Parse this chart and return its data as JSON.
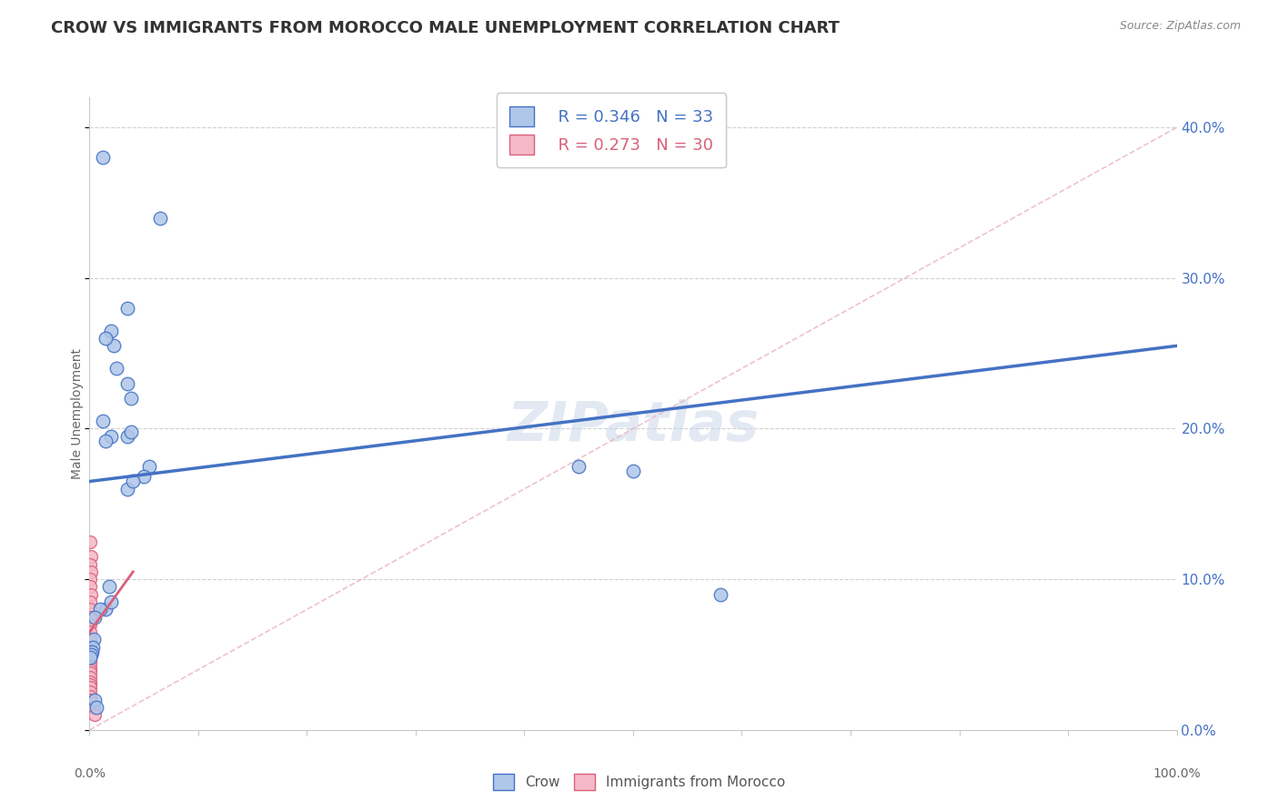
{
  "title": "CROW VS IMMIGRANTS FROM MOROCCO MALE UNEMPLOYMENT CORRELATION CHART",
  "source": "Source: ZipAtlas.com",
  "ylabel": "Male Unemployment",
  "watermark": "ZIPatlas",
  "legend": {
    "crow_r": "R = 0.346",
    "crow_n": "N = 33",
    "morocco_r": "R = 0.273",
    "morocco_n": "N = 30"
  },
  "crow_color": "#aec6e8",
  "crow_line_color": "#4472c4",
  "morocco_color": "#f5b8c8",
  "morocco_line_color": "#d9607a",
  "crow_scatter": [
    [
      1.2,
      38.0
    ],
    [
      6.5,
      34.0
    ],
    [
      3.5,
      28.0
    ],
    [
      2.0,
      26.5
    ],
    [
      2.2,
      25.5
    ],
    [
      2.5,
      24.0
    ],
    [
      1.5,
      26.0
    ],
    [
      3.5,
      23.0
    ],
    [
      3.8,
      22.0
    ],
    [
      1.2,
      20.5
    ],
    [
      3.5,
      19.5
    ],
    [
      3.8,
      19.8
    ],
    [
      2.0,
      19.5
    ],
    [
      1.5,
      19.2
    ],
    [
      5.5,
      17.5
    ],
    [
      5.0,
      16.8
    ],
    [
      45.0,
      17.5
    ],
    [
      50.0,
      17.2
    ],
    [
      3.5,
      16.0
    ],
    [
      4.0,
      16.5
    ],
    [
      58.0,
      9.0
    ],
    [
      1.5,
      8.0
    ],
    [
      1.8,
      9.5
    ],
    [
      2.0,
      8.5
    ],
    [
      1.0,
      8.0
    ],
    [
      0.5,
      7.5
    ],
    [
      0.4,
      6.0
    ],
    [
      0.3,
      5.5
    ],
    [
      0.2,
      5.2
    ],
    [
      0.1,
      5.0
    ],
    [
      0.08,
      4.8
    ],
    [
      0.5,
      2.0
    ],
    [
      0.6,
      1.5
    ]
  ],
  "morocco_scatter": [
    [
      0.05,
      12.5
    ],
    [
      0.15,
      11.5
    ],
    [
      0.08,
      11.0
    ],
    [
      0.12,
      10.5
    ],
    [
      0.06,
      10.0
    ],
    [
      0.07,
      9.5
    ],
    [
      0.1,
      9.0
    ],
    [
      0.05,
      8.5
    ],
    [
      0.08,
      8.0
    ],
    [
      0.04,
      7.5
    ],
    [
      0.06,
      7.0
    ],
    [
      0.05,
      6.5
    ],
    [
      0.07,
      6.0
    ],
    [
      0.06,
      5.5
    ],
    [
      0.05,
      5.2
    ],
    [
      0.04,
      5.0
    ],
    [
      0.05,
      4.8
    ],
    [
      0.06,
      4.5
    ],
    [
      0.04,
      4.2
    ],
    [
      0.05,
      4.0
    ],
    [
      0.06,
      3.8
    ],
    [
      0.04,
      3.5
    ],
    [
      0.05,
      3.2
    ],
    [
      0.06,
      3.0
    ],
    [
      0.05,
      2.8
    ],
    [
      0.04,
      2.5
    ],
    [
      0.05,
      2.2
    ],
    [
      0.04,
      2.0
    ],
    [
      0.4,
      1.5
    ],
    [
      0.5,
      1.0
    ]
  ],
  "crow_line": [
    0.0,
    100.0,
    16.5,
    25.5
  ],
  "morocco_line": [
    0.0,
    4.0,
    6.5,
    10.5
  ],
  "dashed_line": [
    0,
    100,
    0,
    40
  ],
  "xlim": [
    0,
    100
  ],
  "ylim": [
    0,
    42
  ],
  "yticks": [
    0,
    10,
    20,
    30,
    40
  ],
  "ytick_labels": [
    "0.0%",
    "10.0%",
    "20.0%",
    "30.0%",
    "40.0%"
  ],
  "xtick_labels_show": [
    "0.0%",
    "100.0%"
  ],
  "background_color": "#ffffff",
  "grid_color": "#d0d0d0",
  "title_fontsize": 13,
  "axis_label_fontsize": 10
}
